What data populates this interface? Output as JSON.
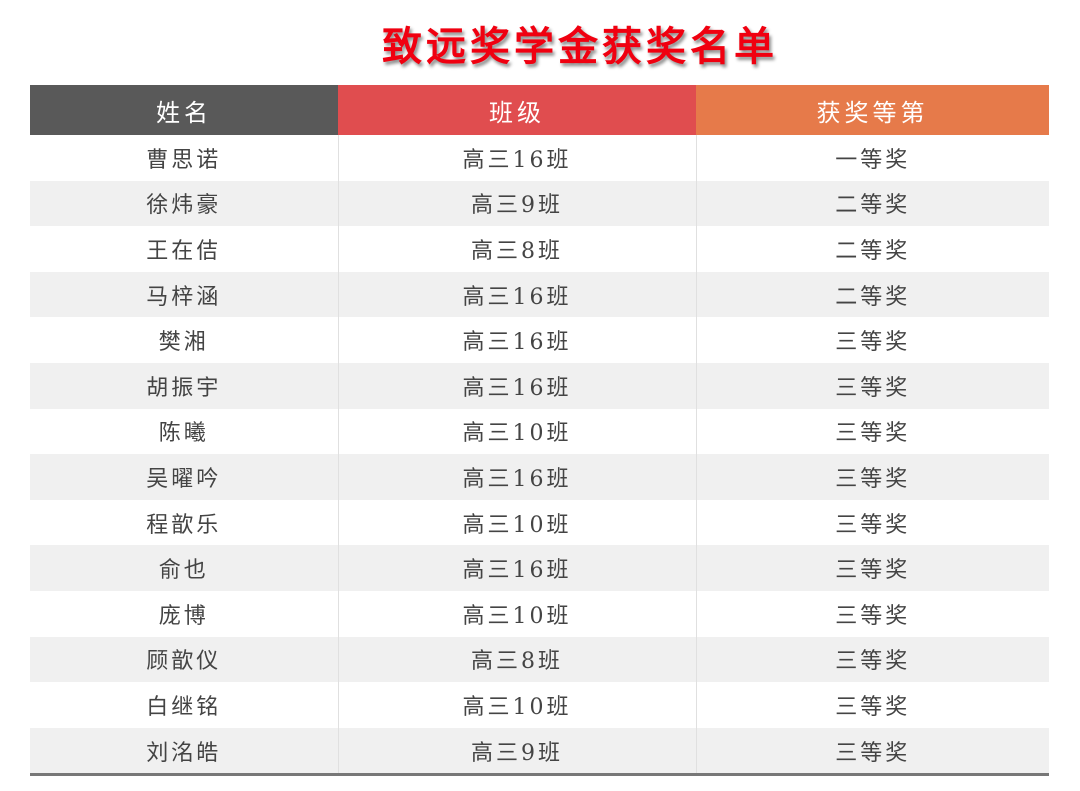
{
  "title": "致远奖学金获奖名单",
  "headers": [
    "姓名",
    "班级",
    "获奖等第"
  ],
  "rows": [
    [
      "曹思诺",
      "高三16班",
      "一等奖"
    ],
    [
      "徐炜豪",
      "高三9班",
      "二等奖"
    ],
    [
      "王在佶",
      "高三8班",
      "二等奖"
    ],
    [
      "马梓涵",
      "高三16班",
      "二等奖"
    ],
    [
      "樊湘",
      "高三16班",
      "三等奖"
    ],
    [
      "胡振宇",
      "高三16班",
      "三等奖"
    ],
    [
      "陈曦",
      "高三10班",
      "三等奖"
    ],
    [
      "吴曜吟",
      "高三16班",
      "三等奖"
    ],
    [
      "程歆乐",
      "高三10班",
      "三等奖"
    ],
    [
      "俞也",
      "高三16班",
      "三等奖"
    ],
    [
      "庞博",
      "高三10班",
      "三等奖"
    ],
    [
      "顾歆仪",
      "高三8班",
      "三等奖"
    ],
    [
      "白继铭",
      "高三10班",
      "三等奖"
    ],
    [
      "刘洺皓",
      "高三9班",
      "三等奖"
    ]
  ],
  "colors": {
    "title": "#f00010",
    "header_name": "#595959",
    "header_class": "#e04d4f",
    "header_award": "#e67a4a"
  }
}
